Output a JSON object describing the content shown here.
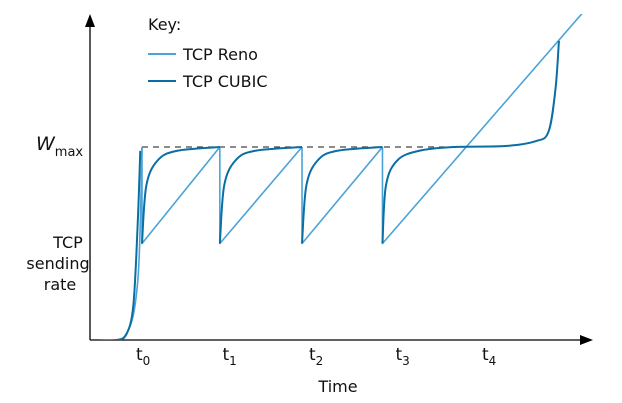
{
  "chart_data": {
    "type": "line",
    "xlabel": "Time",
    "ylabel_lines": [
      "TCP",
      "sending",
      "rate"
    ],
    "wmax_label": {
      "main": "W",
      "sub": "max"
    },
    "legend": {
      "title": "Key:",
      "position": "top-left",
      "entries": [
        {
          "label": "TCP Reno",
          "color": "#4aa3d8"
        },
        {
          "label": "TCP CUBIC",
          "color": "#0b6ea3"
        }
      ]
    },
    "x_ticks": [
      {
        "main": "t",
        "sub": "0",
        "x": 0
      },
      {
        "main": "t",
        "sub": "1",
        "x": 1
      },
      {
        "main": "t",
        "sub": "2",
        "x": 2
      },
      {
        "main": "t",
        "sub": "3",
        "x": 3
      },
      {
        "main": "t",
        "sub": "4",
        "x": 4
      }
    ],
    "xlim": [
      -0.55,
      5.2
    ],
    "ylim": [
      0,
      1.5
    ],
    "wmax": 1.0,
    "drop_level": 0.5,
    "wmax_reference_line": {
      "style": "dashed",
      "x_range": [
        0,
        3.5
      ]
    },
    "series": [
      {
        "name": "TCP Reno",
        "color": "#4aa3d8",
        "segments": [
          [
            [
              -0.55,
              0.0
            ],
            [
              -0.2,
              0.02
            ],
            [
              -0.05,
              0.3
            ],
            [
              0.0,
              1.0
            ]
          ],
          [
            [
              0.0,
              1.0
            ],
            [
              0.0,
              0.5
            ],
            [
              0.9,
              1.0
            ]
          ],
          [
            [
              0.9,
              1.0
            ],
            [
              0.9,
              0.5
            ],
            [
              1.85,
              1.0
            ]
          ],
          [
            [
              1.85,
              1.0
            ],
            [
              1.85,
              0.5
            ],
            [
              2.78,
              1.0
            ]
          ],
          [
            [
              2.78,
              1.0
            ],
            [
              2.78,
              0.5
            ],
            [
              5.2,
              1.75
            ]
          ]
        ]
      },
      {
        "name": "TCP CUBIC",
        "color": "#0b6ea3",
        "segments": [
          [
            [
              -0.55,
              0.0
            ],
            [
              -0.3,
              0.0
            ],
            [
              -0.18,
              0.03
            ],
            [
              -0.1,
              0.18
            ],
            [
              -0.05,
              0.6
            ],
            [
              -0.02,
              0.98
            ]
          ],
          [
            [
              0.0,
              0.5
            ],
            [
              0.05,
              0.8
            ],
            [
              0.18,
              0.93
            ],
            [
              0.4,
              0.98
            ],
            [
              0.9,
              1.0
            ]
          ],
          [
            [
              0.9,
              0.5
            ],
            [
              0.95,
              0.8
            ],
            [
              1.08,
              0.93
            ],
            [
              1.3,
              0.98
            ],
            [
              1.85,
              1.0
            ]
          ],
          [
            [
              1.85,
              0.5
            ],
            [
              1.9,
              0.8
            ],
            [
              2.03,
              0.93
            ],
            [
              2.25,
              0.98
            ],
            [
              2.78,
              1.0
            ]
          ],
          [
            [
              2.78,
              0.5
            ],
            [
              2.82,
              0.8
            ],
            [
              2.95,
              0.93
            ],
            [
              3.2,
              0.98
            ],
            [
              3.6,
              1.0
            ],
            [
              4.2,
              1.005
            ],
            [
              4.55,
              1.03
            ],
            [
              4.7,
              1.08
            ],
            [
              4.78,
              1.3
            ],
            [
              4.82,
              1.55
            ]
          ]
        ]
      }
    ]
  }
}
